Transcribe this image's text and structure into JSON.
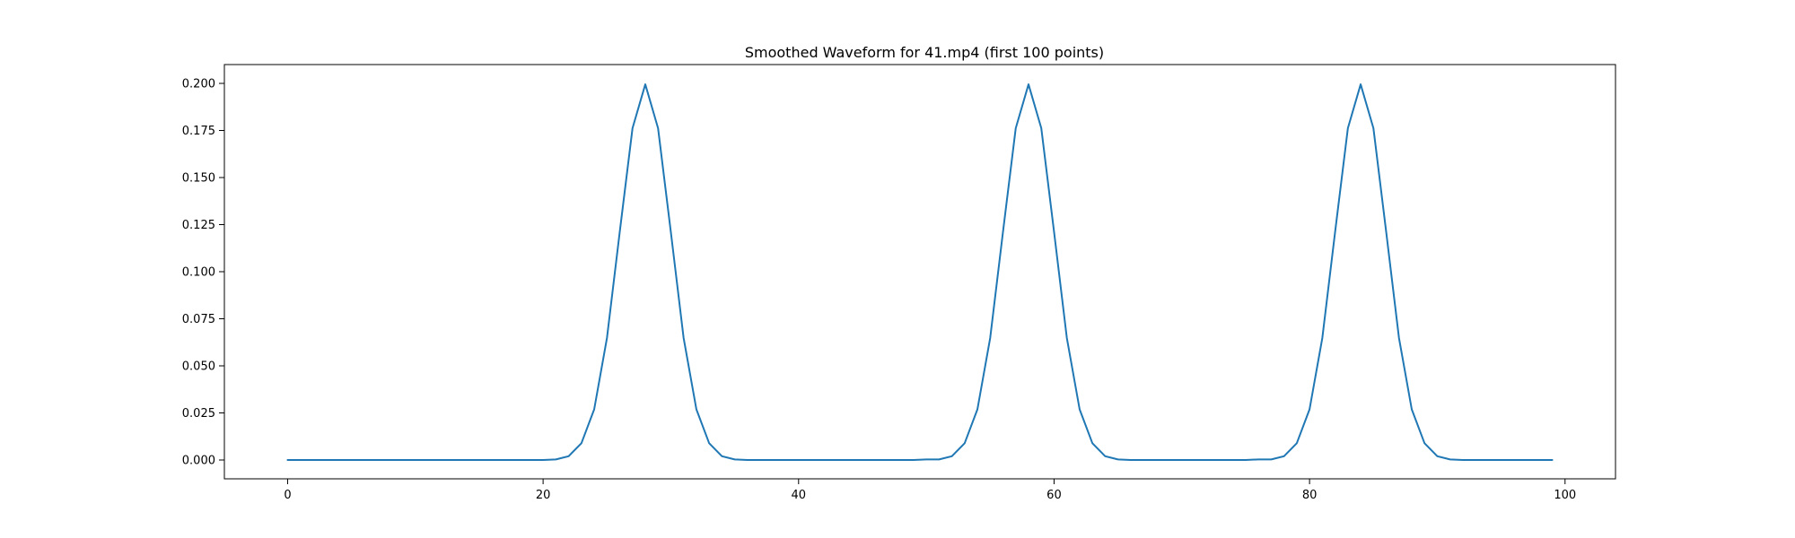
{
  "chart_data": {
    "type": "line",
    "title": "Smoothed Waveform for 41.mp4 (first 100 points)",
    "xlabel": "",
    "ylabel": "",
    "xlim": [
      -4.95,
      103.95
    ],
    "ylim": [
      -0.01,
      0.21
    ],
    "x_ticks": [
      0,
      20,
      40,
      60,
      80,
      100
    ],
    "x_tick_labels": [
      "0",
      "20",
      "40",
      "60",
      "80",
      "100"
    ],
    "y_ticks": [
      0.0,
      0.025,
      0.05,
      0.075,
      0.1,
      0.125,
      0.15,
      0.175,
      0.2
    ],
    "y_tick_labels": [
      "0.000",
      "0.025",
      "0.050",
      "0.075",
      "0.100",
      "0.125",
      "0.150",
      "0.175",
      "0.200"
    ],
    "grid": false,
    "legend": "none",
    "series": [
      {
        "color": "#1f77b4",
        "x": [
          0,
          1,
          2,
          3,
          4,
          5,
          6,
          7,
          8,
          9,
          10,
          11,
          12,
          13,
          14,
          15,
          16,
          17,
          18,
          19,
          20,
          21,
          22,
          23,
          24,
          25,
          26,
          27,
          28,
          29,
          30,
          31,
          32,
          33,
          34,
          35,
          36,
          37,
          38,
          39,
          40,
          41,
          42,
          43,
          44,
          45,
          46,
          47,
          48,
          49,
          50,
          51,
          52,
          53,
          54,
          55,
          56,
          57,
          58,
          59,
          60,
          61,
          62,
          63,
          64,
          65,
          66,
          67,
          68,
          69,
          70,
          71,
          72,
          73,
          74,
          75,
          76,
          77,
          78,
          79,
          80,
          81,
          82,
          83,
          84,
          85,
          86,
          87,
          88,
          89,
          90,
          91,
          92,
          93,
          94,
          95,
          96,
          97,
          98,
          99
        ],
        "values": [
          0,
          0,
          0,
          0,
          0,
          0,
          0,
          0,
          0,
          0,
          0,
          0,
          0,
          0,
          0,
          0,
          0,
          0,
          0,
          0,
          0,
          0.0003,
          0.002,
          0.0089,
          0.0269,
          0.0648,
          0.1211,
          0.1762,
          0.1995,
          0.1762,
          0.1211,
          0.0648,
          0.0269,
          0.0089,
          0.002,
          0.0003,
          0,
          0,
          0,
          0,
          0,
          0,
          0,
          0,
          0,
          0,
          0,
          0,
          0,
          0,
          0.0003,
          0.0003,
          0.002,
          0.0089,
          0.0269,
          0.0648,
          0.1211,
          0.1762,
          0.1995,
          0.1762,
          0.1211,
          0.0648,
          0.0269,
          0.0089,
          0.002,
          0.0003,
          0,
          0,
          0,
          0,
          0,
          0,
          0,
          0,
          0,
          0,
          0.0003,
          0.0003,
          0.002,
          0.0089,
          0.0269,
          0.0648,
          0.1211,
          0.1762,
          0.1995,
          0.1762,
          0.1211,
          0.0648,
          0.0269,
          0.0089,
          0.002,
          0.0003,
          0,
          0,
          0,
          0,
          0,
          0,
          0,
          0
        ]
      }
    ]
  }
}
